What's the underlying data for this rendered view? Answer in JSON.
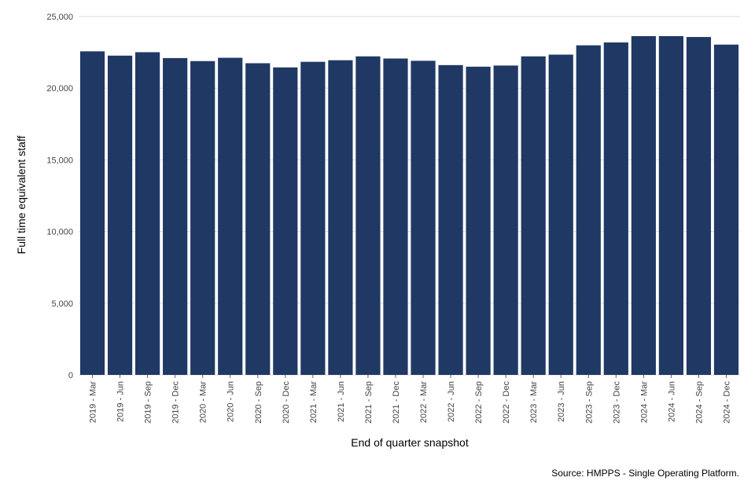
{
  "chart_data": {
    "type": "bar",
    "title": "",
    "xlabel": "End of quarter snapshot",
    "ylabel": "Full time equivalent staff",
    "ylim": [
      0,
      25000
    ],
    "yticks": [
      0,
      5000,
      10000,
      15000,
      20000,
      25000
    ],
    "ytick_labels": [
      "0",
      "5,000",
      "10,000",
      "15,000",
      "20,000",
      "25,000"
    ],
    "grid": true,
    "legend": "none",
    "bar_color": "#203864",
    "categories": [
      "2019 - Mar",
      "2019 - Jun",
      "2019 - Sep",
      "2019 - Dec",
      "2020 - Mar",
      "2020 - Jun",
      "2020 - Sep",
      "2020 - Dec",
      "2021 - Mar",
      "2021 - Jun",
      "2021 - Sep",
      "2021 - Dec",
      "2022 - Mar",
      "2022 - Jun",
      "2022 - Sep",
      "2022 - Dec",
      "2023 - Mar",
      "2023 - Jun",
      "2023 - Sep",
      "2023 - Dec",
      "2024 - Mar",
      "2024 - Jun",
      "2024 - Sep",
      "2024 - Dec"
    ],
    "values": [
      22570,
      22270,
      22510,
      22100,
      21890,
      22120,
      21740,
      21450,
      21840,
      21950,
      22220,
      22070,
      21910,
      21610,
      21500,
      21580,
      22220,
      22340,
      22990,
      23190,
      23630,
      23630,
      23570,
      23040
    ],
    "source": "Source: HMPPS - Single Operating Platform."
  }
}
